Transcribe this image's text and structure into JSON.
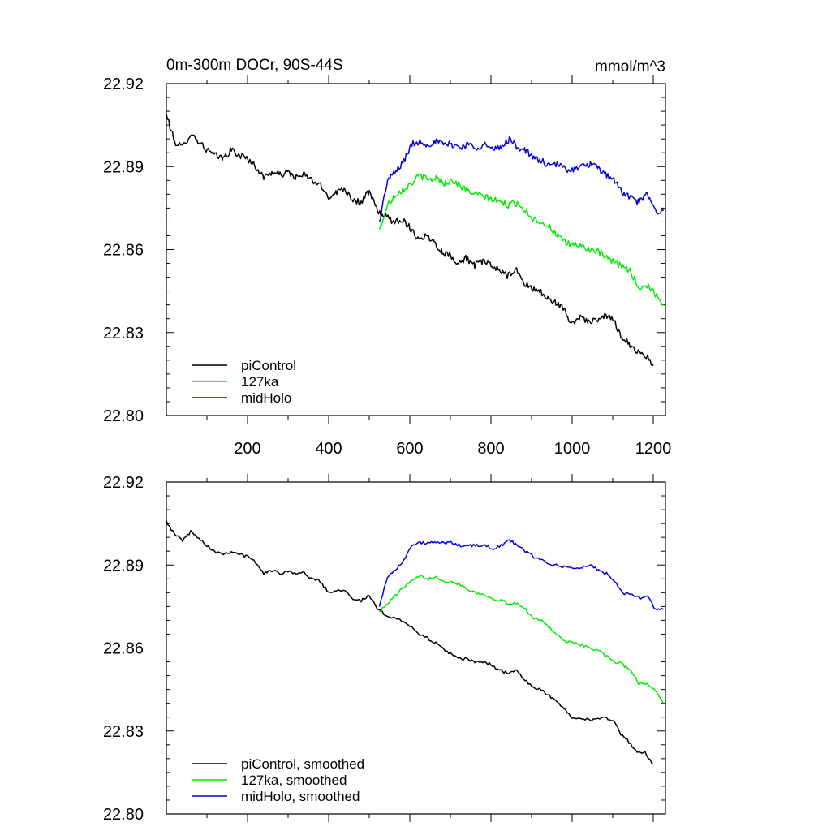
{
  "chart_data": [
    {
      "type": "line",
      "title": "0m-300m DOCr, 90S-44S",
      "units": "mmol/m^3",
      "xlabel": "",
      "ylabel": "",
      "xlim": [
        0,
        1230
      ],
      "ylim": [
        22.8,
        22.92
      ],
      "xticks": [
        200,
        400,
        600,
        800,
        1000,
        1200
      ],
      "xtick_labels": [
        "200",
        "400",
        "600",
        "800",
        "1000",
        "1200"
      ],
      "yticks": [
        22.8,
        22.83,
        22.86,
        22.89,
        22.92
      ],
      "ytick_labels": [
        "22.80",
        "22.83",
        "22.86",
        "22.89",
        "22.92"
      ],
      "legend_position": "bottom-left",
      "series": [
        {
          "name": "piControl",
          "label": "piControl",
          "color": "#000000",
          "x": [
            0,
            20,
            40,
            60,
            80,
            100,
            120,
            140,
            160,
            180,
            200,
            220,
            240,
            260,
            280,
            300,
            320,
            340,
            360,
            380,
            400,
            420,
            440,
            460,
            480,
            500,
            520,
            540,
            560,
            580,
            600,
            620,
            640,
            660,
            680,
            700,
            720,
            740,
            760,
            780,
            800,
            820,
            840,
            860,
            880,
            900,
            920,
            940,
            960,
            980,
            1000,
            1020,
            1040,
            1060,
            1080,
            1100,
            1120,
            1140,
            1160,
            1180,
            1200
          ],
          "values": [
            22.909,
            22.899,
            22.897,
            22.902,
            22.899,
            22.896,
            22.894,
            22.893,
            22.896,
            22.894,
            22.893,
            22.89,
            22.886,
            22.888,
            22.887,
            22.888,
            22.886,
            22.887,
            22.885,
            22.883,
            22.879,
            22.881,
            22.882,
            22.878,
            22.877,
            22.881,
            22.874,
            22.872,
            22.87,
            22.871,
            22.868,
            22.864,
            22.865,
            22.863,
            22.859,
            22.858,
            22.855,
            22.857,
            22.854,
            22.856,
            22.854,
            22.853,
            22.85,
            22.853,
            22.848,
            22.846,
            22.845,
            22.842,
            22.841,
            22.838,
            22.833,
            22.836,
            22.834,
            22.834,
            22.836,
            22.835,
            22.829,
            22.826,
            22.823,
            22.822,
            22.818
          ]
        },
        {
          "name": "127ka",
          "label": "127ka",
          "color": "#00ee00",
          "x": [
            525,
            545,
            565,
            585,
            605,
            625,
            645,
            665,
            685,
            705,
            725,
            745,
            765,
            785,
            805,
            825,
            845,
            865,
            885,
            905,
            925,
            945,
            965,
            985,
            1005,
            1025,
            1045,
            1065,
            1085,
            1105,
            1125,
            1145,
            1165,
            1185,
            1205,
            1225
          ],
          "values": [
            22.867,
            22.876,
            22.88,
            22.882,
            22.884,
            22.887,
            22.885,
            22.886,
            22.884,
            22.885,
            22.883,
            22.881,
            22.88,
            22.879,
            22.878,
            22.877,
            22.876,
            22.877,
            22.874,
            22.871,
            22.87,
            22.868,
            22.865,
            22.862,
            22.862,
            22.861,
            22.86,
            22.859,
            22.857,
            22.855,
            22.854,
            22.852,
            22.846,
            22.847,
            22.844,
            22.84
          ]
        },
        {
          "name": "midHolo",
          "label": "midHolo",
          "color": "#0000dd",
          "x": [
            525,
            545,
            565,
            585,
            605,
            625,
            645,
            665,
            685,
            705,
            725,
            745,
            765,
            785,
            805,
            825,
            845,
            865,
            885,
            905,
            925,
            945,
            965,
            985,
            1005,
            1025,
            1045,
            1065,
            1085,
            1105,
            1125,
            1145,
            1165,
            1185,
            1205,
            1225
          ],
          "values": [
            22.87,
            22.885,
            22.888,
            22.892,
            22.898,
            22.899,
            22.898,
            22.899,
            22.898,
            22.898,
            22.897,
            22.898,
            22.897,
            22.898,
            22.896,
            22.897,
            22.9,
            22.897,
            22.896,
            22.893,
            22.892,
            22.89,
            22.891,
            22.889,
            22.889,
            22.89,
            22.891,
            22.889,
            22.887,
            22.885,
            22.88,
            22.879,
            22.877,
            22.88,
            22.874,
            22.874
          ]
        }
      ]
    },
    {
      "type": "line",
      "title": "",
      "xlabel": "",
      "ylabel": "",
      "xlim": [
        0,
        1230
      ],
      "ylim": [
        22.8,
        22.92
      ],
      "yticks": [
        22.8,
        22.83,
        22.86,
        22.89,
        22.92
      ],
      "ytick_labels": [
        "22.80",
        "22.83",
        "22.86",
        "22.89",
        "22.92"
      ],
      "legend_position": "bottom-left",
      "series": [
        {
          "name": "piControl, smoothed",
          "label": "piControl, smoothed",
          "color": "#000000",
          "x": [
            0,
            20,
            40,
            60,
            80,
            100,
            120,
            140,
            160,
            180,
            200,
            220,
            240,
            260,
            280,
            300,
            320,
            340,
            360,
            380,
            400,
            420,
            440,
            460,
            480,
            500,
            520,
            540,
            560,
            580,
            600,
            620,
            640,
            660,
            680,
            700,
            720,
            740,
            760,
            780,
            800,
            820,
            840,
            860,
            880,
            900,
            920,
            940,
            960,
            980,
            1000,
            1020,
            1040,
            1060,
            1080,
            1100,
            1120,
            1140,
            1160,
            1180,
            1200
          ],
          "values": [
            22.906,
            22.901,
            22.899,
            22.902,
            22.9,
            22.897,
            22.895,
            22.894,
            22.895,
            22.894,
            22.893,
            22.891,
            22.887,
            22.888,
            22.887,
            22.888,
            22.887,
            22.887,
            22.885,
            22.884,
            22.88,
            22.881,
            22.881,
            22.878,
            22.877,
            22.879,
            22.874,
            22.872,
            22.871,
            22.87,
            22.868,
            22.865,
            22.864,
            22.862,
            22.86,
            22.858,
            22.856,
            22.856,
            22.855,
            22.855,
            22.854,
            22.852,
            22.851,
            22.852,
            22.849,
            22.846,
            22.845,
            22.843,
            22.841,
            22.838,
            22.835,
            22.835,
            22.834,
            22.834,
            22.835,
            22.834,
            22.829,
            22.826,
            22.822,
            22.822,
            22.818
          ]
        },
        {
          "name": "127ka, smoothed",
          "label": "127ka, smoothed",
          "color": "#00ee00",
          "x": [
            525,
            545,
            565,
            585,
            605,
            625,
            645,
            665,
            685,
            705,
            725,
            745,
            765,
            785,
            805,
            825,
            845,
            865,
            885,
            905,
            925,
            945,
            965,
            985,
            1005,
            1025,
            1045,
            1065,
            1085,
            1105,
            1125,
            1145,
            1165,
            1185,
            1205,
            1225
          ],
          "values": [
            22.873,
            22.876,
            22.879,
            22.882,
            22.884,
            22.886,
            22.885,
            22.886,
            22.884,
            22.884,
            22.883,
            22.881,
            22.88,
            22.879,
            22.878,
            22.877,
            22.876,
            22.876,
            22.874,
            22.871,
            22.87,
            22.867,
            22.865,
            22.862,
            22.862,
            22.861,
            22.86,
            22.859,
            22.857,
            22.855,
            22.854,
            22.852,
            22.847,
            22.847,
            22.845,
            22.84
          ]
        },
        {
          "name": "midHolo, smoothed",
          "label": "midHolo, smoothed",
          "color": "#0000dd",
          "x": [
            525,
            545,
            565,
            585,
            605,
            625,
            645,
            665,
            685,
            705,
            725,
            745,
            765,
            785,
            805,
            825,
            845,
            865,
            885,
            905,
            925,
            945,
            965,
            985,
            1005,
            1025,
            1045,
            1065,
            1085,
            1105,
            1125,
            1145,
            1165,
            1185,
            1205,
            1225
          ],
          "values": [
            22.875,
            22.886,
            22.888,
            22.892,
            22.897,
            22.898,
            22.898,
            22.898,
            22.898,
            22.898,
            22.897,
            22.897,
            22.897,
            22.897,
            22.896,
            22.897,
            22.899,
            22.897,
            22.895,
            22.893,
            22.892,
            22.89,
            22.89,
            22.889,
            22.889,
            22.889,
            22.89,
            22.888,
            22.887,
            22.884,
            22.88,
            22.879,
            22.878,
            22.879,
            22.874,
            22.874
          ]
        }
      ]
    }
  ]
}
